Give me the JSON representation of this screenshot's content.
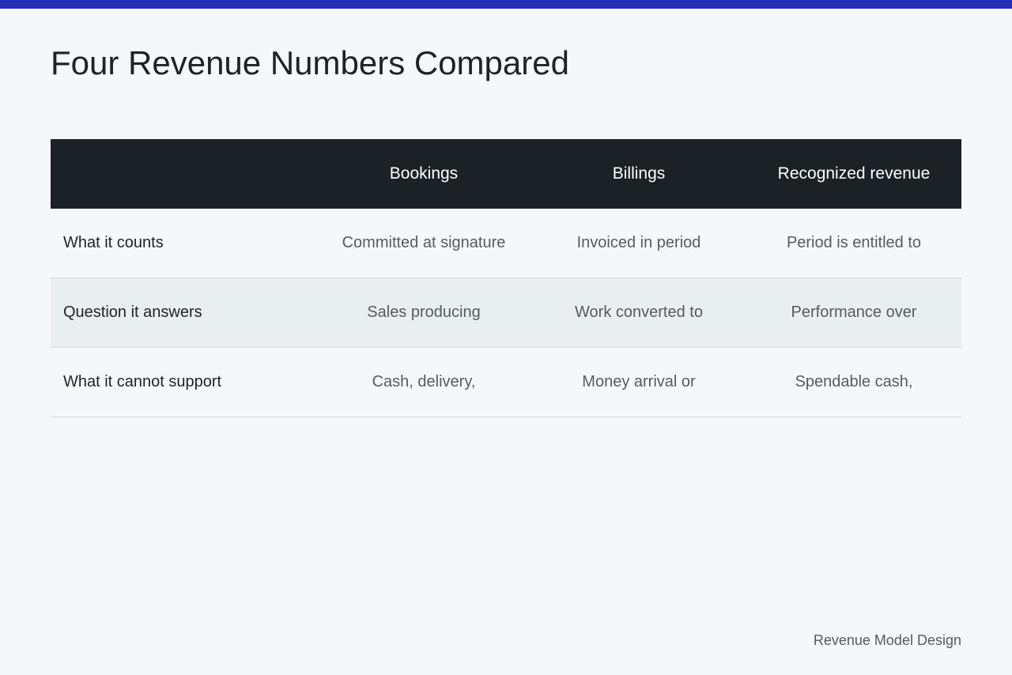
{
  "title": "Four Revenue Numbers Compared",
  "table": {
    "columns": [
      "",
      "Bookings",
      "Billings",
      "Recognized revenue"
    ],
    "rows": [
      {
        "label": "What it counts",
        "cells": [
          "Committed at signature",
          "Invoiced in period",
          "Period is entitled to"
        ]
      },
      {
        "label": "Question it answers",
        "cells": [
          "Sales producing",
          "Work converted to",
          "Performance over"
        ]
      },
      {
        "label": "What it cannot support",
        "cells": [
          "Cash, delivery,",
          "Money arrival or",
          "Spendable cash,"
        ]
      }
    ]
  },
  "footer": "Revenue Model Design",
  "colors": {
    "accent_bar": "#2430b8",
    "header_bg": "#1b2124",
    "alt_row_bg": "#e9eef0",
    "page_bg": "#f5f7fa"
  }
}
